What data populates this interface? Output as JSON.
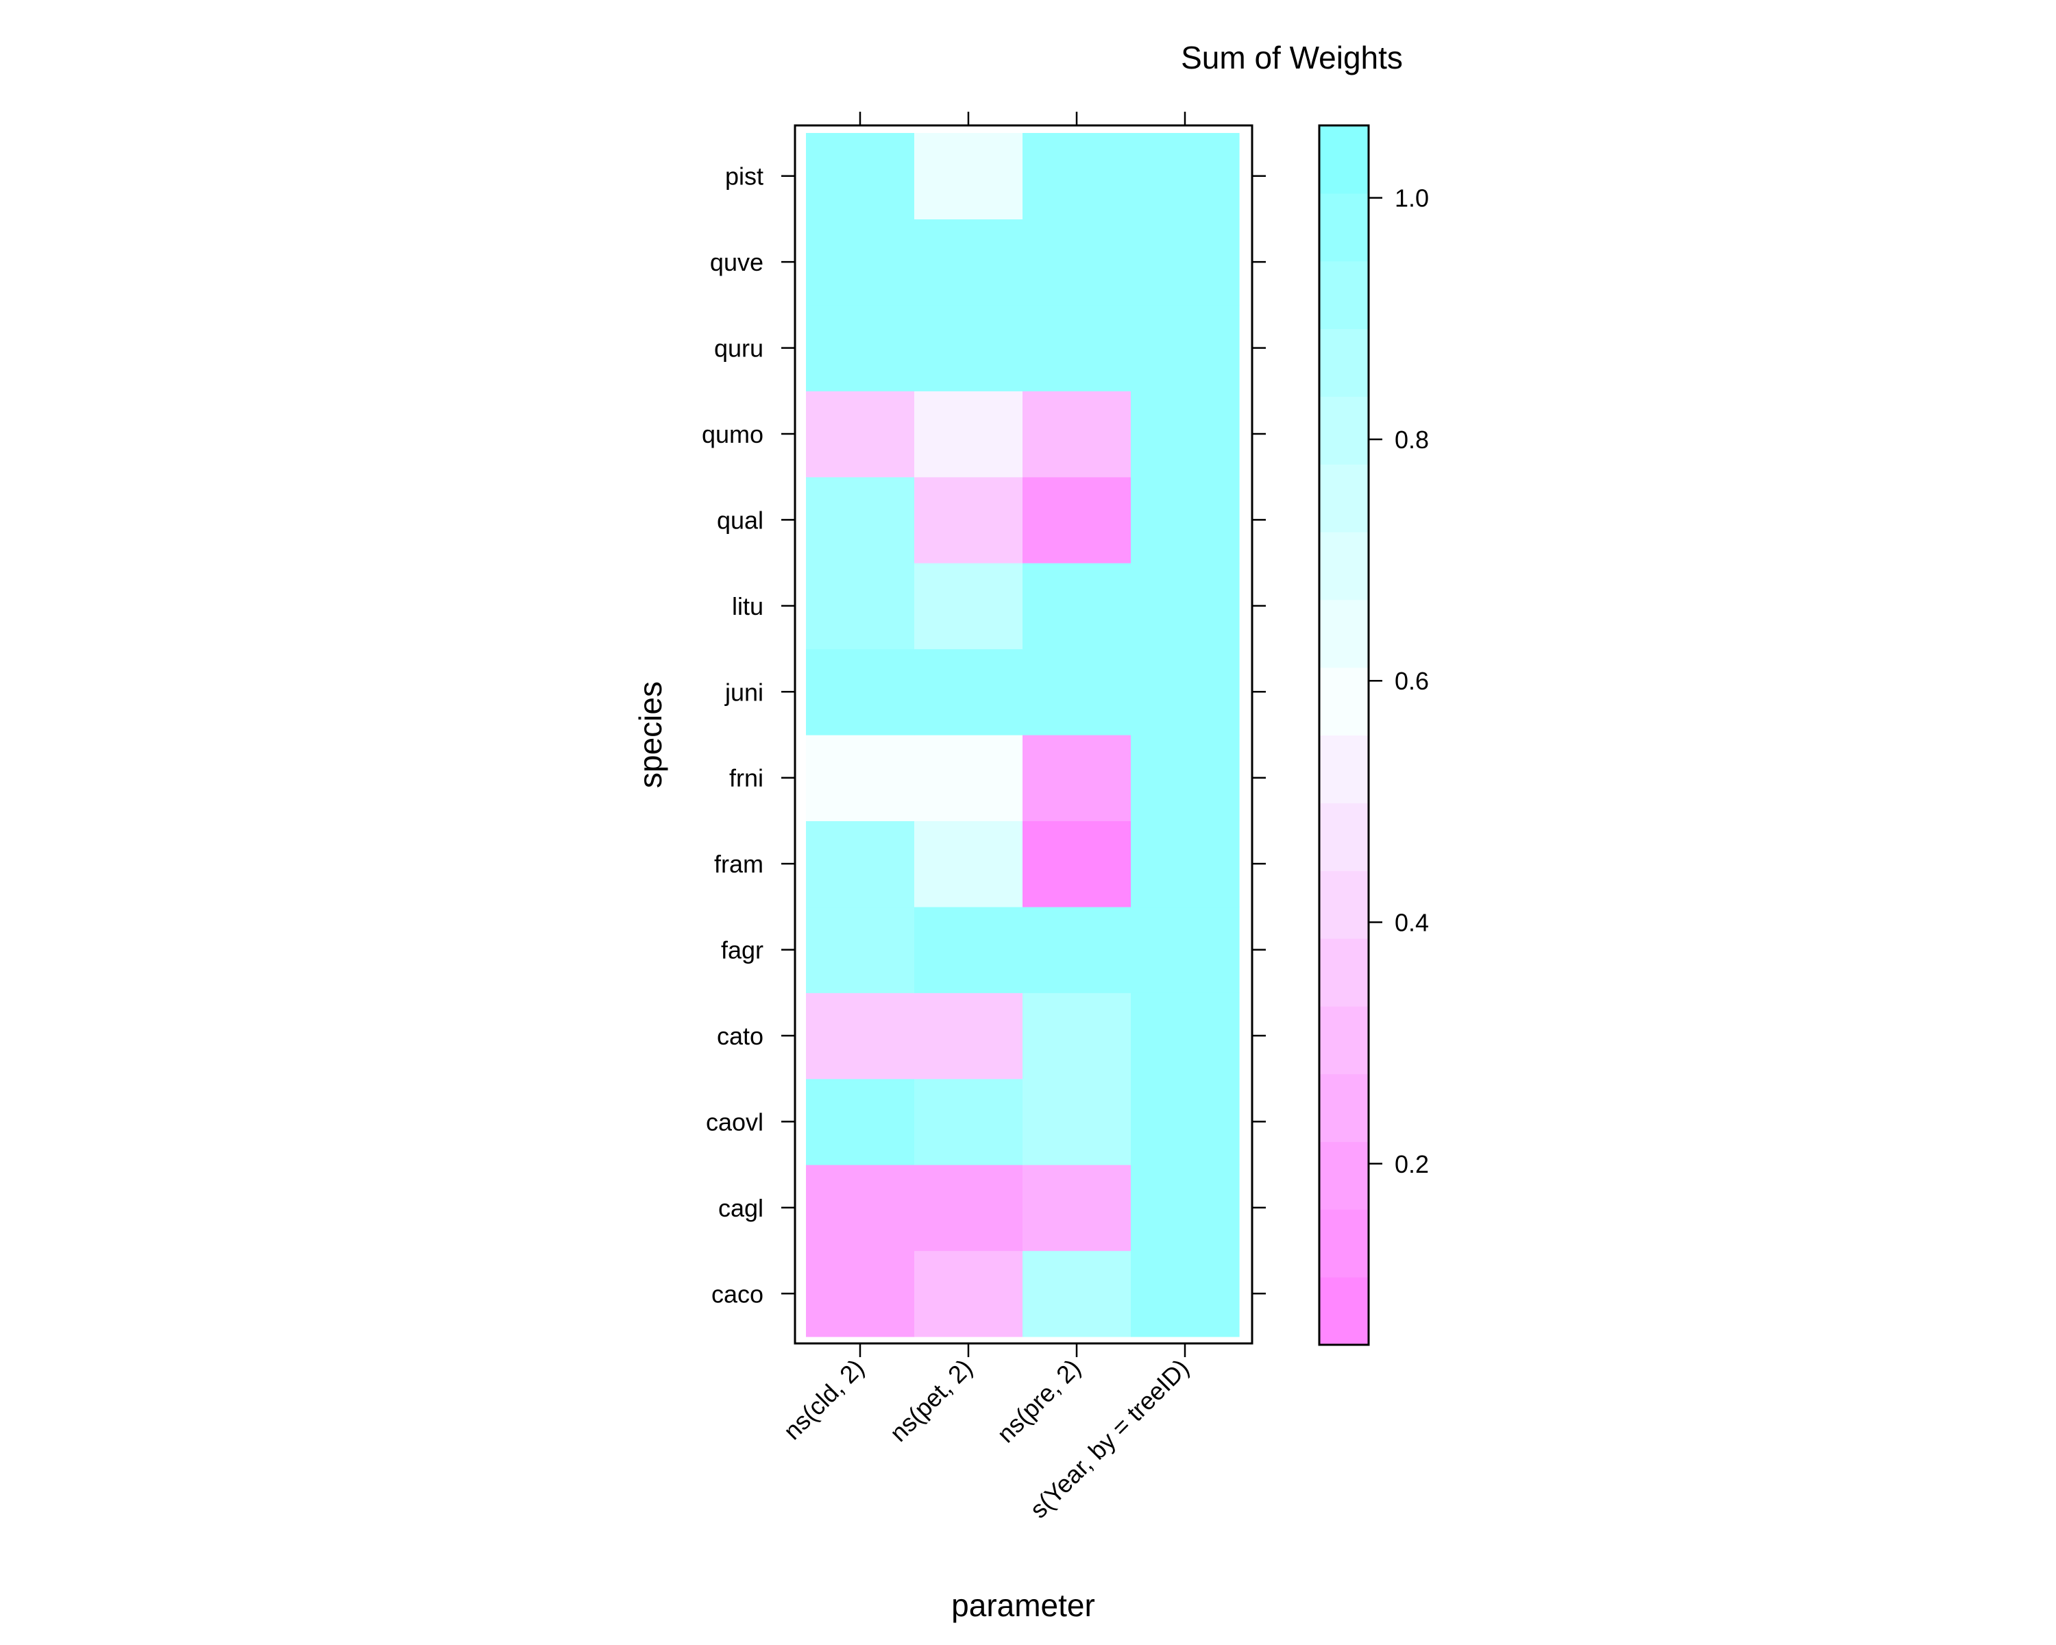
{
  "chart_data": {
    "type": "heatmap",
    "title": "Sum of Weights",
    "xlabel": "parameter",
    "ylabel": "species",
    "x_categories": [
      "ns(cld, 2)",
      "ns(pet, 2)",
      "ns(pre, 2)",
      "s(Year, by = treeID)"
    ],
    "y_categories": [
      "caco",
      "cagl",
      "caovl",
      "cato",
      "fagr",
      "fram",
      "frni",
      "juni",
      "litu",
      "qual",
      "qumo",
      "quru",
      "quve",
      "pist"
    ],
    "values": [
      [
        0.2,
        0.28,
        0.88,
        1.0
      ],
      [
        0.18,
        0.18,
        0.25,
        1.0
      ],
      [
        0.99,
        0.9,
        0.88,
        1.0
      ],
      [
        0.35,
        0.35,
        0.88,
        1.0
      ],
      [
        0.93,
        0.99,
        0.99,
        1.0
      ],
      [
        0.93,
        0.72,
        0.1,
        1.0
      ],
      [
        0.6,
        0.6,
        0.2,
        1.0
      ],
      [
        0.99,
        0.99,
        0.99,
        1.0
      ],
      [
        0.93,
        0.83,
        0.99,
        1.0
      ],
      [
        0.93,
        0.35,
        0.15,
        1.0
      ],
      [
        0.35,
        0.55,
        0.28,
        1.0
      ],
      [
        1.0,
        1.0,
        1.0,
        1.0
      ],
      [
        1.0,
        1.0,
        1.0,
        1.0
      ],
      [
        1.0,
        0.65,
        1.0,
        1.0
      ]
    ],
    "colorbar": {
      "range": [
        0.05,
        1.06
      ],
      "ticks": [
        0.2,
        0.4,
        0.6,
        0.8,
        1.0
      ],
      "tick_labels": [
        "0.2",
        "0.4",
        "0.6",
        "0.8",
        "1.0"
      ],
      "low_color": "#ff80ff",
      "mid_color": "#f8ffff",
      "high_color": "#80ffff",
      "levels": 18
    }
  }
}
